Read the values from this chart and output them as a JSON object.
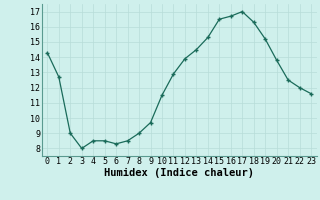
{
  "x": [
    0,
    1,
    2,
    3,
    4,
    5,
    6,
    7,
    8,
    9,
    10,
    11,
    12,
    13,
    14,
    15,
    16,
    17,
    18,
    19,
    20,
    21,
    22,
    23
  ],
  "y": [
    14.3,
    12.7,
    9.0,
    8.0,
    8.5,
    8.5,
    8.3,
    8.5,
    9.0,
    9.7,
    11.5,
    12.9,
    13.9,
    14.5,
    15.3,
    16.5,
    16.7,
    17.0,
    16.3,
    15.2,
    13.8,
    12.5,
    12.0,
    11.6
  ],
  "xlabel": "Humidex (Indice chaleur)",
  "ylim": [
    7.5,
    17.5
  ],
  "xlim": [
    -0.5,
    23.5
  ],
  "yticks": [
    8,
    9,
    10,
    11,
    12,
    13,
    14,
    15,
    16,
    17
  ],
  "xtick_labels": [
    "0",
    "1",
    "2",
    "3",
    "4",
    "5",
    "6",
    "7",
    "8",
    "9",
    "10",
    "11",
    "12",
    "13",
    "14",
    "15",
    "16",
    "17",
    "18",
    "19",
    "20",
    "21",
    "22",
    "23"
  ],
  "line_color": "#1a6b5a",
  "marker": "+",
  "bg_color": "#cff0ec",
  "grid_color": "#b8ddd8",
  "xlabel_fontsize": 7.5,
  "tick_fontsize": 6.0
}
